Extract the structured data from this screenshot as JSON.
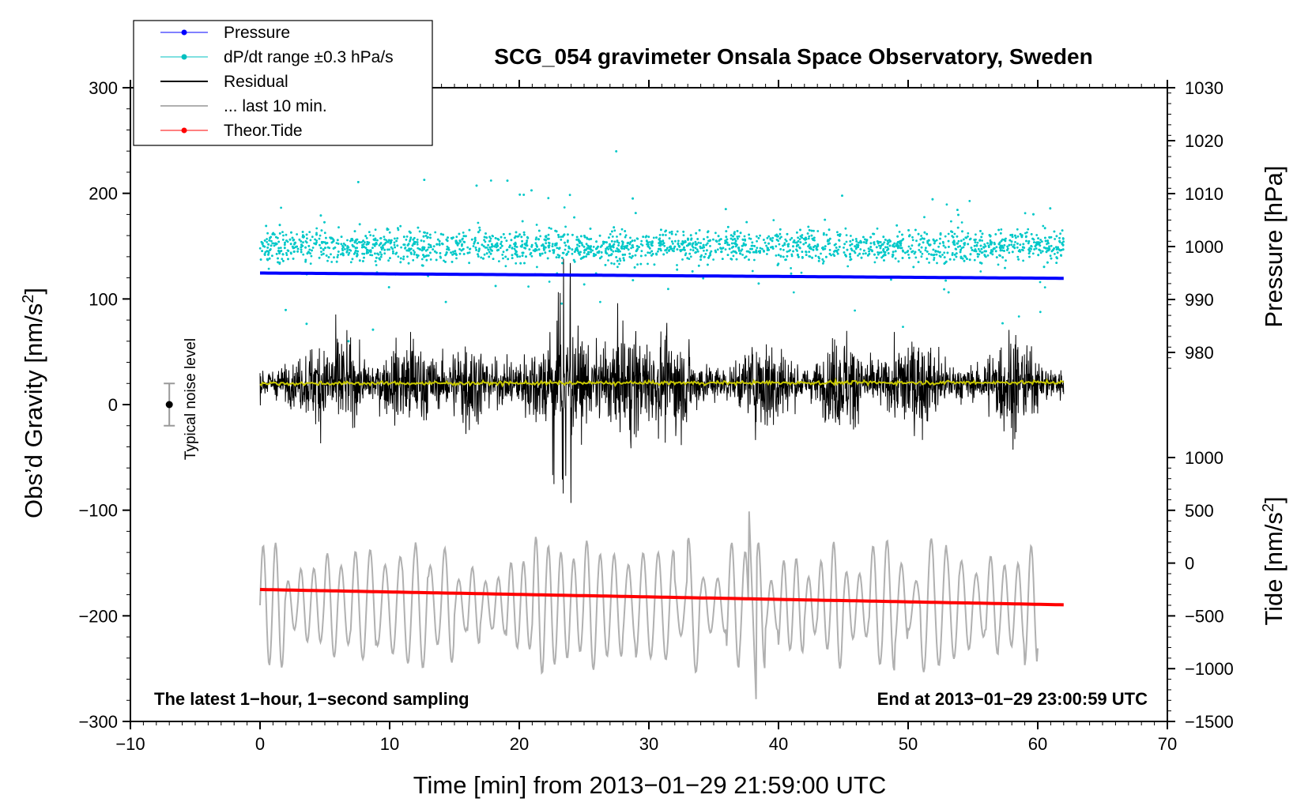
{
  "chart_data": {
    "type": "line",
    "title": "SCG_054 gravimeter Onsala Space Observatory, Sweden",
    "xlabel": "Time [min] from 2013−01−29 21:59:00 UTC",
    "ylabel": "Obs’d Gravity [nm/s²]",
    "ylabel_base": "Obs’d Gravity [nm/s",
    "ylabel_sup": "2",
    "ylabel_end": "]",
    "y2label": "Pressure [hPa]",
    "y3label_base": "Tide [nm/s",
    "y3label_sup": "2",
    "y3label_end": "]",
    "xlim": [
      -10,
      70
    ],
    "ylim": [
      -300,
      300
    ],
    "xticks": [
      -10,
      0,
      10,
      20,
      30,
      40,
      50,
      60,
      70
    ],
    "xtick_labels": [
      "−10",
      "0",
      "10",
      "20",
      "30",
      "40",
      "50",
      "60",
      "70"
    ],
    "yticks": [
      300,
      200,
      100,
      0,
      -100,
      -200,
      -300
    ],
    "ytick_labels": [
      "300",
      "200",
      "100",
      "0",
      "−100",
      "−200",
      "−300"
    ],
    "pressure_axis": {
      "range": [
        975,
        1030
      ],
      "ticks": [
        1030,
        1020,
        1010,
        1000,
        990,
        980
      ],
      "tick_labels": [
        "1030",
        "1020",
        "1010",
        "1000",
        "990",
        "980"
      ]
    },
    "tide_axis": {
      "range": [
        -1500,
        1000
      ],
      "ticks": [
        1000,
        500,
        0,
        -500,
        -1000,
        -1500
      ],
      "tick_labels": [
        "1000",
        "500",
        "0",
        "−500",
        "−1000",
        "−1500"
      ]
    },
    "legend": [
      {
        "label": "Pressure",
        "color": "#0000ff",
        "style": "line-dot"
      },
      {
        "label": "dP/dt range ±0.3 hPa/s",
        "color": "#00c0c0",
        "style": "line-dot"
      },
      {
        "label": "Residual",
        "color": "#000000",
        "style": "line"
      },
      {
        "label": "... last 10 min.",
        "color": "#b0b0b0",
        "style": "line"
      },
      {
        "label": "Theor.Tide",
        "color": "#ff0000",
        "style": "line-dot"
      }
    ],
    "series": [
      {
        "name": "Pressure",
        "axis": "pressure",
        "color": "#0000ff",
        "x": [
          0,
          62
        ],
        "values": [
          995.0,
          994.0
        ]
      },
      {
        "name": "dP/dt range ±0.3 hPa/s",
        "axis": "gravity",
        "color": "#00c8c8",
        "x_range": [
          0,
          62
        ],
        "center": 150,
        "spread": 25
      },
      {
        "name": "Residual",
        "axis": "gravity",
        "color": "#000000",
        "x_range": [
          0,
          62
        ],
        "center": 20,
        "amplitude": 70,
        "min": -100,
        "max": 140
      },
      {
        "name": "Residual smoothed",
        "axis": "gravity",
        "color": "#c8c800",
        "x": [
          0,
          62
        ],
        "values": [
          20,
          21
        ]
      },
      {
        "name": "... last 10 min.",
        "axis": "gravity",
        "color": "#b0b0b0",
        "x_range": [
          0,
          60
        ],
        "center": -190,
        "amplitude": 50
      },
      {
        "name": "Theor.Tide",
        "axis": "tide",
        "color": "#ff0000",
        "x": [
          0,
          62
        ],
        "values": [
          -250,
          -395
        ]
      }
    ],
    "noise_bar": {
      "x": -7,
      "value": 0,
      "error": 20,
      "label": "Typical noise level"
    },
    "annotations": {
      "left": "The latest 1−hour, 1−second sampling",
      "right": "End at 2013−01−29 23:00:59 UTC"
    }
  }
}
